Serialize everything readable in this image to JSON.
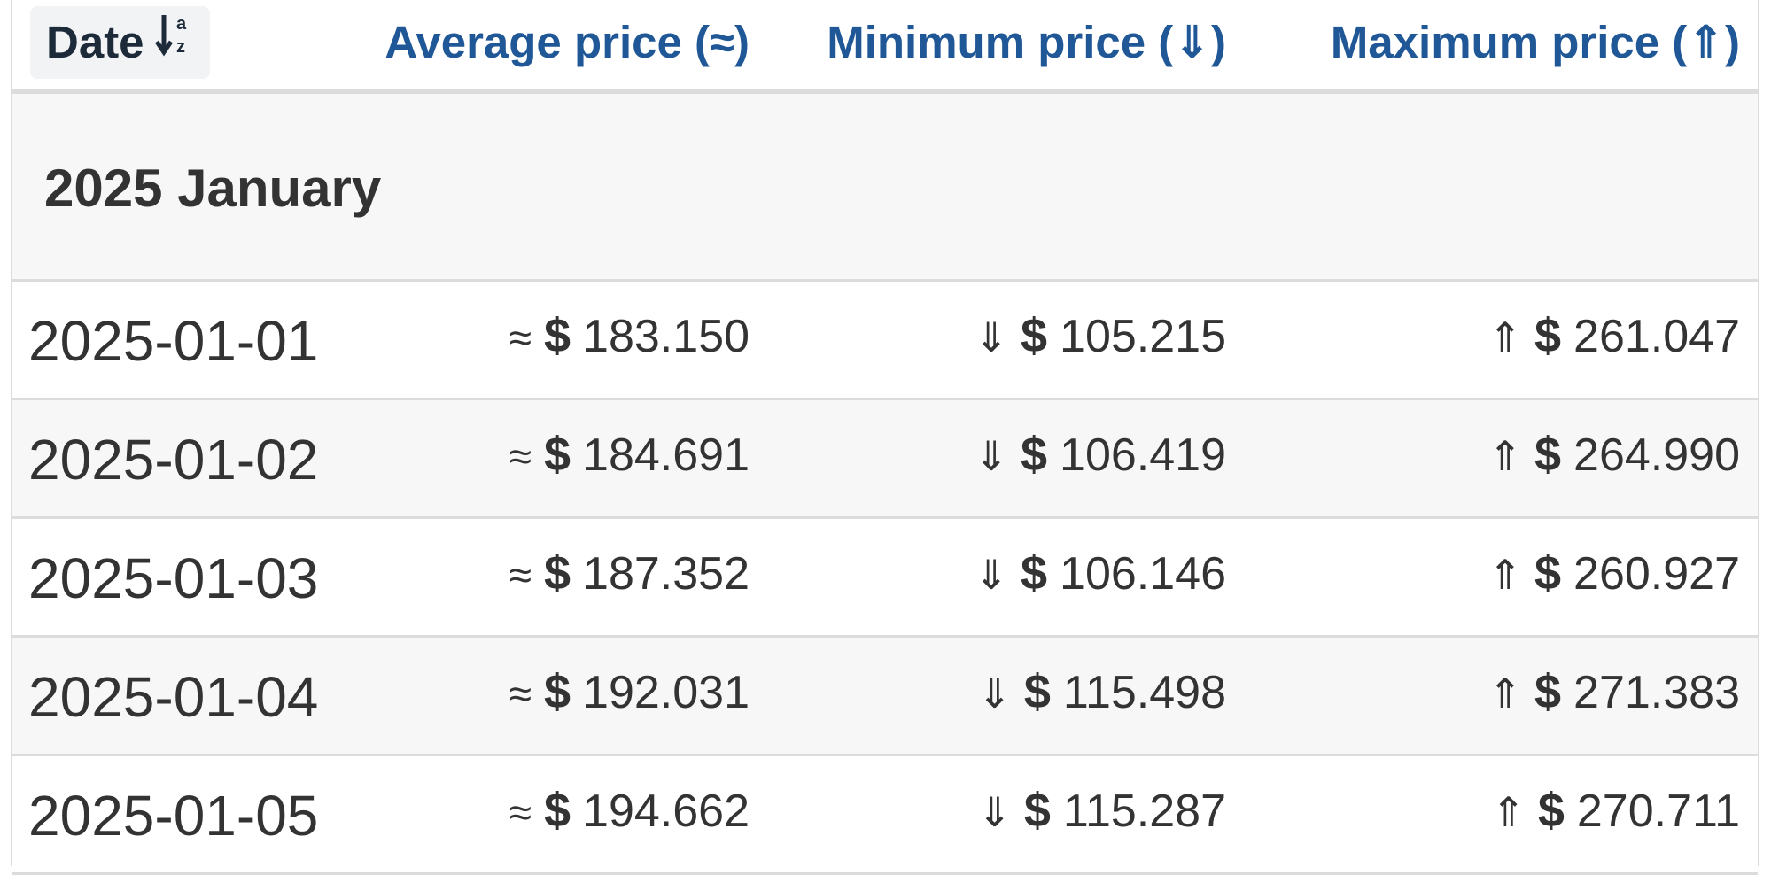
{
  "header": {
    "date_label": "Date",
    "avg_label": "Average price (≈)",
    "min_label": "Minimum price (⇓)",
    "max_label": "Maximum price (⇑)",
    "sort_icon": "sort-alpha-down-icon"
  },
  "group": {
    "title": "2025 January"
  },
  "symbols": {
    "avg": "≈",
    "min": "⇓",
    "max": "⇑",
    "currency": "$"
  },
  "rows": [
    {
      "date": "2025-01-01",
      "avg": "183.150",
      "min": "105.215",
      "max": "261.047"
    },
    {
      "date": "2025-01-02",
      "avg": "184.691",
      "min": "106.419",
      "max": "264.990"
    },
    {
      "date": "2025-01-03",
      "avg": "187.352",
      "min": "106.146",
      "max": "260.927"
    },
    {
      "date": "2025-01-04",
      "avg": "192.031",
      "min": "115.498",
      "max": "271.383"
    },
    {
      "date": "2025-01-05",
      "avg": "194.662",
      "min": "115.287",
      "max": "270.711"
    }
  ],
  "colors": {
    "header_text": "#1f5797",
    "body_text": "#333333",
    "row_alt_bg": "#f7f7f7",
    "border": "#dcdcdc"
  }
}
